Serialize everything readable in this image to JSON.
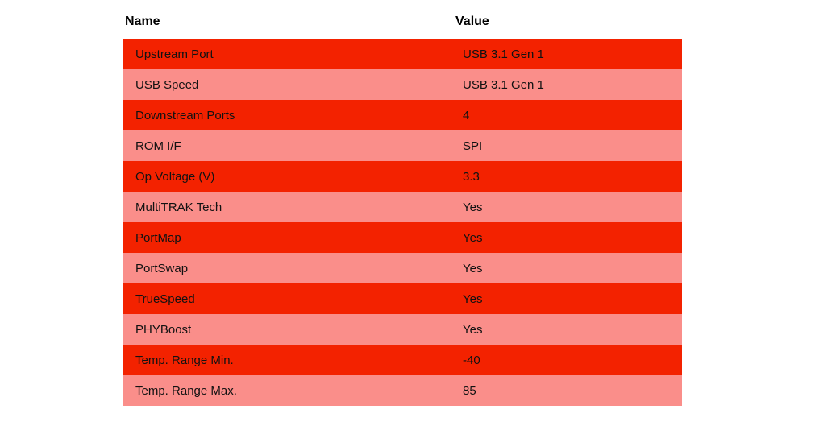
{
  "colors": {
    "row_odd": "#F32200",
    "row_even": "#FA8E8A",
    "header_text": "#000000",
    "body_text": "#121212",
    "background": "#FFFFFF"
  },
  "chart_data": {
    "type": "table",
    "title": "",
    "columns": [
      "Name",
      "Value"
    ],
    "rows": [
      {
        "name": "Upstream Port",
        "value": "USB 3.1 Gen 1"
      },
      {
        "name": "USB Speed",
        "value": "USB 3.1 Gen 1"
      },
      {
        "name": "Downstream Ports",
        "value": "4"
      },
      {
        "name": "ROM I/F",
        "value": "SPI"
      },
      {
        "name": "Op Voltage (V)",
        "value": "3.3"
      },
      {
        "name": "MultiTRAK Tech",
        "value": "Yes"
      },
      {
        "name": "PortMap",
        "value": "Yes"
      },
      {
        "name": "PortSwap",
        "value": "Yes"
      },
      {
        "name": "TrueSpeed",
        "value": "Yes"
      },
      {
        "name": "PHYBoost",
        "value": "Yes"
      },
      {
        "name": "Temp. Range Min.",
        "value": "-40"
      },
      {
        "name": "Temp. Range Max.",
        "value": "85"
      }
    ],
    "layout": {
      "stripe_order": "first-row-red",
      "header_background": "white",
      "grid": false
    }
  }
}
